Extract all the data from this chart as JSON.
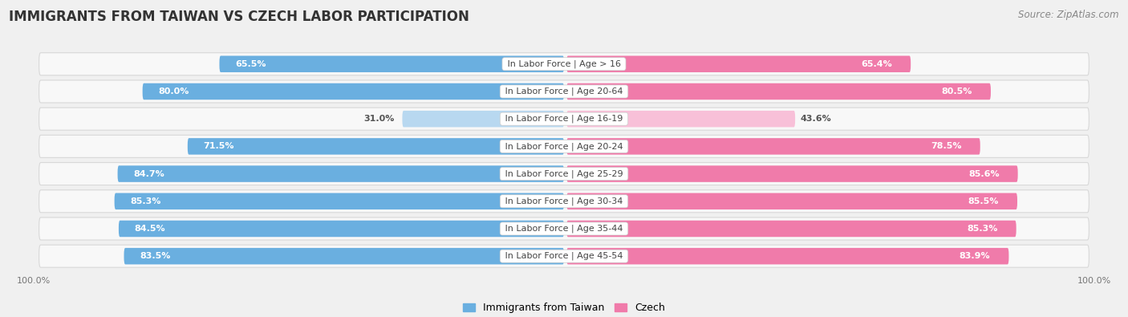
{
  "title": "IMMIGRANTS FROM TAIWAN VS CZECH LABOR PARTICIPATION",
  "source": "Source: ZipAtlas.com",
  "categories": [
    "In Labor Force | Age > 16",
    "In Labor Force | Age 20-64",
    "In Labor Force | Age 16-19",
    "In Labor Force | Age 20-24",
    "In Labor Force | Age 25-29",
    "In Labor Force | Age 30-34",
    "In Labor Force | Age 35-44",
    "In Labor Force | Age 45-54"
  ],
  "taiwan_values": [
    65.5,
    80.0,
    31.0,
    71.5,
    84.7,
    85.3,
    84.5,
    83.5
  ],
  "czech_values": [
    65.4,
    80.5,
    43.6,
    78.5,
    85.6,
    85.5,
    85.3,
    83.9
  ],
  "taiwan_color": "#6aafe0",
  "czech_color": "#f07baa",
  "taiwan_color_light": "#b8d8f0",
  "czech_color_light": "#f8c0d8",
  "background_color": "#f0f0f0",
  "row_bg_color": "#e8e8e8",
  "row_inner_bg": "#ffffff",
  "bar_height": 0.62,
  "max_value": 100.0,
  "legend_taiwan": "Immigrants from Taiwan",
  "legend_czech": "Czech",
  "title_fontsize": 12,
  "source_fontsize": 8.5,
  "label_fontsize": 8,
  "category_fontsize": 8,
  "legend_fontsize": 9,
  "axis_label_fontsize": 8
}
